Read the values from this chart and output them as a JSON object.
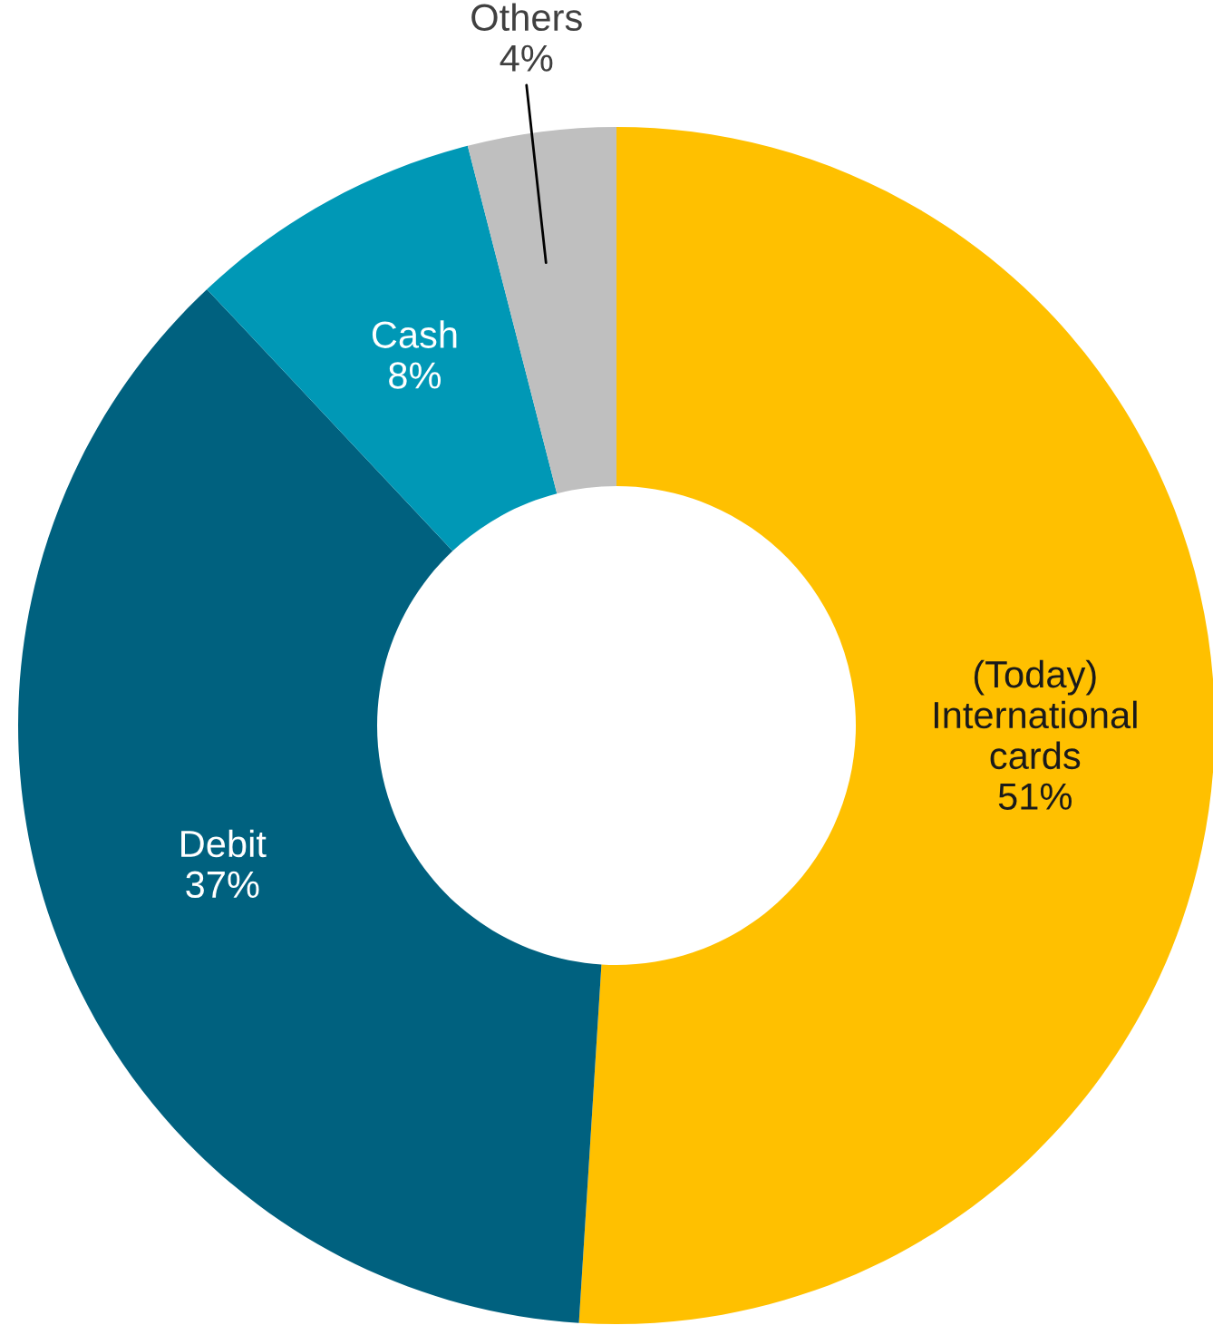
{
  "chart_data": {
    "type": "donut",
    "categories": [
      "(Today)\nInternational\ncards",
      "Debit",
      "Cash",
      "Others"
    ],
    "values": [
      51,
      37,
      8,
      4
    ],
    "colors": [
      "#ffc000",
      "#00617f",
      "#0098b6",
      "#bfbfbf"
    ],
    "value_labels": [
      "51%",
      "37%",
      "8%",
      "4%"
    ],
    "legend": false
  }
}
